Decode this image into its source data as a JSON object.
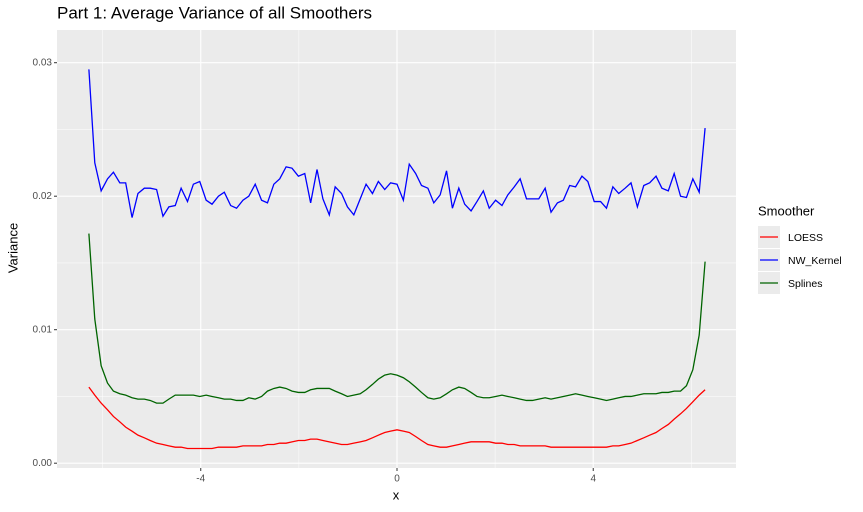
{
  "chart_data": {
    "type": "line",
    "title": "Part 1: Average Variance of all Smoothers",
    "x_label": "x",
    "y_label": "Variance",
    "legend_title": "Smoother",
    "grid": true,
    "legend_position": "right",
    "xlim": [
      -6.93,
      6.91
    ],
    "ylim": [
      -0.00036,
      0.03245
    ],
    "xticks": [
      -4,
      0,
      4
    ],
    "yticks": [
      {
        "value": 0,
        "label": "0.00"
      },
      0.01,
      0.02,
      0.03
    ],
    "x": [
      -6.28,
      -6.16,
      -6.03,
      -5.9,
      -5.78,
      -5.65,
      -5.53,
      -5.4,
      -5.28,
      -5.15,
      -5.03,
      -4.9,
      -4.77,
      -4.65,
      -4.52,
      -4.4,
      -4.27,
      -4.15,
      -4.02,
      -3.89,
      -3.77,
      -3.64,
      -3.52,
      -3.39,
      -3.27,
      -3.14,
      -3.02,
      -2.89,
      -2.76,
      -2.64,
      -2.51,
      -2.39,
      -2.26,
      -2.14,
      -2.01,
      -1.88,
      -1.76,
      -1.63,
      -1.51,
      -1.38,
      -1.26,
      -1.13,
      -1.01,
      -0.88,
      -0.75,
      -0.63,
      -0.5,
      -0.38,
      -0.25,
      -0.13,
      0,
      0.13,
      0.25,
      0.38,
      0.5,
      0.63,
      0.75,
      0.88,
      1.01,
      1.13,
      1.26,
      1.38,
      1.51,
      1.63,
      1.76,
      1.88,
      2.01,
      2.14,
      2.26,
      2.39,
      2.51,
      2.64,
      2.76,
      2.89,
      3.02,
      3.14,
      3.27,
      3.39,
      3.52,
      3.64,
      3.77,
      3.89,
      4.02,
      4.15,
      4.27,
      4.4,
      4.52,
      4.65,
      4.77,
      4.9,
      5.03,
      5.15,
      5.28,
      5.4,
      5.53,
      5.65,
      5.78,
      5.9,
      6.03,
      6.16,
      6.28
    ],
    "series": [
      {
        "name": "LOESS",
        "color": "#ff0000",
        "values": [
          0.0057,
          0.0051,
          0.0045,
          0.004,
          0.0035,
          0.0031,
          0.0027,
          0.0024,
          0.0021,
          0.0019,
          0.0017,
          0.0015,
          0.0014,
          0.0013,
          0.0012,
          0.0012,
          0.0011,
          0.0011,
          0.0011,
          0.0011,
          0.0011,
          0.0012,
          0.0012,
          0.0012,
          0.0012,
          0.0013,
          0.0013,
          0.0013,
          0.0013,
          0.0014,
          0.0014,
          0.0015,
          0.0015,
          0.0016,
          0.0017,
          0.0017,
          0.0018,
          0.0018,
          0.0017,
          0.0016,
          0.0015,
          0.0014,
          0.0014,
          0.0015,
          0.0016,
          0.0017,
          0.0019,
          0.0021,
          0.0023,
          0.0024,
          0.0025,
          0.0024,
          0.0023,
          0.002,
          0.0017,
          0.0014,
          0.0013,
          0.0012,
          0.0012,
          0.0013,
          0.0014,
          0.0015,
          0.0016,
          0.0016,
          0.0016,
          0.0016,
          0.0015,
          0.0015,
          0.0014,
          0.0014,
          0.0013,
          0.0013,
          0.0013,
          0.0013,
          0.0013,
          0.0012,
          0.0012,
          0.0012,
          0.0012,
          0.0012,
          0.0012,
          0.0012,
          0.0012,
          0.0012,
          0.0012,
          0.0013,
          0.0013,
          0.0014,
          0.0015,
          0.0017,
          0.0019,
          0.0021,
          0.0023,
          0.0026,
          0.0029,
          0.0033,
          0.0037,
          0.0041,
          0.0046,
          0.0051,
          0.0055
        ]
      },
      {
        "name": "NW_Kernel",
        "color": "#0000ff",
        "values": [
          0.0295,
          0.0225,
          0.0204,
          0.0213,
          0.0218,
          0.021,
          0.021,
          0.0184,
          0.0202,
          0.0206,
          0.0206,
          0.0205,
          0.0185,
          0.0192,
          0.0193,
          0.0206,
          0.0196,
          0.0209,
          0.0211,
          0.0197,
          0.0194,
          0.02,
          0.0203,
          0.0193,
          0.0191,
          0.0197,
          0.02,
          0.0209,
          0.0197,
          0.0195,
          0.0209,
          0.0213,
          0.0222,
          0.0221,
          0.0215,
          0.0217,
          0.0195,
          0.022,
          0.0198,
          0.0186,
          0.0207,
          0.0202,
          0.0192,
          0.0186,
          0.0198,
          0.0209,
          0.0202,
          0.0211,
          0.0205,
          0.021,
          0.0209,
          0.0197,
          0.0224,
          0.0217,
          0.0208,
          0.0206,
          0.0195,
          0.0201,
          0.0219,
          0.0191,
          0.0206,
          0.0194,
          0.0189,
          0.0196,
          0.0204,
          0.0191,
          0.0197,
          0.0193,
          0.0201,
          0.0207,
          0.0213,
          0.0198,
          0.0198,
          0.0198,
          0.0206,
          0.0188,
          0.0195,
          0.0197,
          0.0208,
          0.0207,
          0.0215,
          0.0211,
          0.0196,
          0.0196,
          0.0191,
          0.0207,
          0.0202,
          0.0206,
          0.021,
          0.0192,
          0.0208,
          0.021,
          0.0215,
          0.0206,
          0.0204,
          0.0217,
          0.02,
          0.0199,
          0.0213,
          0.0203,
          0.0251
        ]
      },
      {
        "name": "Splines",
        "color": "#006400",
        "values": [
          0.0172,
          0.0108,
          0.0073,
          0.006,
          0.0054,
          0.0052,
          0.0051,
          0.0049,
          0.0048,
          0.0048,
          0.0047,
          0.0045,
          0.0045,
          0.0048,
          0.0051,
          0.0051,
          0.0051,
          0.0051,
          0.005,
          0.0051,
          0.005,
          0.0049,
          0.0048,
          0.0048,
          0.0047,
          0.0047,
          0.0049,
          0.0048,
          0.005,
          0.0054,
          0.0056,
          0.0057,
          0.0056,
          0.0054,
          0.0053,
          0.0053,
          0.0055,
          0.0056,
          0.0056,
          0.0056,
          0.0054,
          0.0052,
          0.005,
          0.0051,
          0.0052,
          0.0055,
          0.0059,
          0.0063,
          0.0066,
          0.0067,
          0.0066,
          0.0064,
          0.0061,
          0.0057,
          0.0053,
          0.0049,
          0.0048,
          0.0049,
          0.0052,
          0.0055,
          0.0057,
          0.0056,
          0.0053,
          0.005,
          0.0049,
          0.0049,
          0.005,
          0.0051,
          0.005,
          0.0049,
          0.0048,
          0.0047,
          0.0047,
          0.0048,
          0.0049,
          0.0048,
          0.0049,
          0.005,
          0.0051,
          0.0052,
          0.0051,
          0.005,
          0.0049,
          0.0048,
          0.0047,
          0.0048,
          0.0049,
          0.005,
          0.005,
          0.0051,
          0.0052,
          0.0052,
          0.0052,
          0.0053,
          0.0053,
          0.0054,
          0.0054,
          0.0058,
          0.007,
          0.0096,
          0.0151
        ]
      }
    ]
  }
}
